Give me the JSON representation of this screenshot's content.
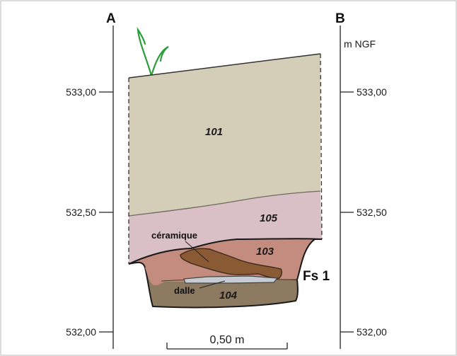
{
  "profile": {
    "left_label": "A",
    "right_label": "B",
    "unit": "m NGF",
    "elevations": [
      "533,00",
      "532,50",
      "532,00"
    ],
    "fill_label": "Fs 1",
    "scale_bar": "0,50 m"
  },
  "layers": [
    {
      "id": "101",
      "color": "#d4cdb8"
    },
    {
      "id": "105",
      "color": "#d9bfc6"
    },
    {
      "id": "103",
      "color": "#c48c7e"
    },
    {
      "id": "104",
      "color": "#8c7a61"
    }
  ],
  "annotations": {
    "ceramic": "céramique",
    "slab": "dalle"
  },
  "colors": {
    "ceramic": "#8a5a35",
    "slab": "#c7ccd2",
    "vegetation": "#2a9e3a"
  }
}
